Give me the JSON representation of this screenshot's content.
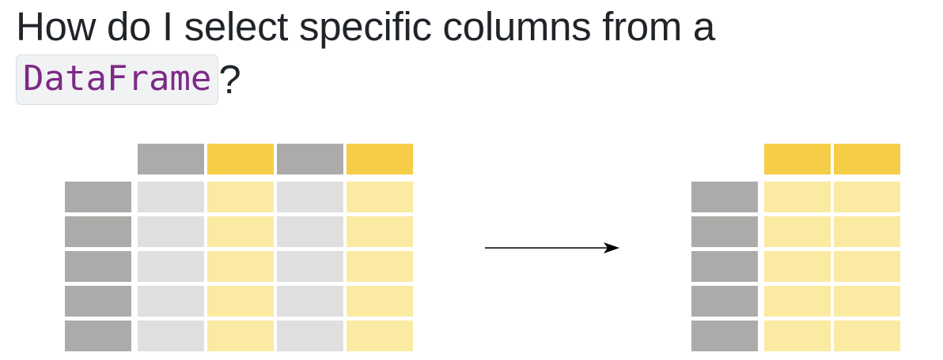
{
  "heading": {
    "line1": "How do I select specific columns from a",
    "code": "DataFrame",
    "suffix": "?"
  },
  "diagram": {
    "source_table": {
      "rows": 5,
      "columns": [
        {
          "selected": false
        },
        {
          "selected": true
        },
        {
          "selected": false
        },
        {
          "selected": true
        }
      ]
    },
    "result_table": {
      "rows": 5,
      "columns": [
        {
          "selected": true
        },
        {
          "selected": true
        }
      ]
    },
    "arrow": "right-arrow"
  },
  "colors": {
    "index_cell": "#acaba9",
    "header_gray": "#acaba9",
    "header_yellow": "#f5cd47",
    "cell_gray": "#e0dfe0",
    "cell_yellow": "#fbeaa2",
    "code_text": "#7d2a86",
    "code_bg": "#f1f2f4",
    "heading_text": "#212529"
  }
}
